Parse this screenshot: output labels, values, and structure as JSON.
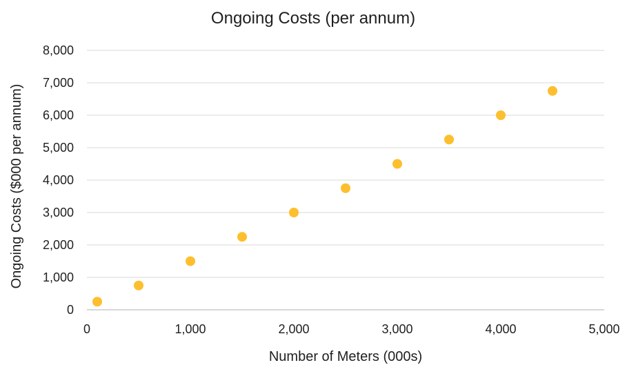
{
  "chart_data": {
    "type": "scatter",
    "title": "Ongoing Costs (per annum)",
    "xlabel": "Number of Meters (000s)",
    "ylabel": "Ongoing Costs ($000 per annum)",
    "xlim": [
      0,
      5000
    ],
    "ylim": [
      0,
      8000
    ],
    "xticks": [
      0,
      1000,
      2000,
      3000,
      4000,
      5000
    ],
    "yticks": [
      0,
      1000,
      2000,
      3000,
      4000,
      5000,
      6000,
      7000,
      8000
    ],
    "xtick_labels": [
      "0",
      "1,000",
      "2,000",
      "3,000",
      "4,000",
      "5,000"
    ],
    "ytick_labels": [
      "0",
      "1,000",
      "2,000",
      "3,000",
      "4,000",
      "5,000",
      "6,000",
      "7,000",
      "8,000"
    ],
    "grid": "horizontal",
    "marker_color": "#FDBF2D",
    "points": [
      {
        "x": 100,
        "y": 250
      },
      {
        "x": 500,
        "y": 750
      },
      {
        "x": 1000,
        "y": 1500
      },
      {
        "x": 1500,
        "y": 2250
      },
      {
        "x": 2000,
        "y": 3000
      },
      {
        "x": 2500,
        "y": 3750
      },
      {
        "x": 3000,
        "y": 4500
      },
      {
        "x": 3500,
        "y": 5250
      },
      {
        "x": 4000,
        "y": 6000
      },
      {
        "x": 4500,
        "y": 6750
      }
    ]
  }
}
